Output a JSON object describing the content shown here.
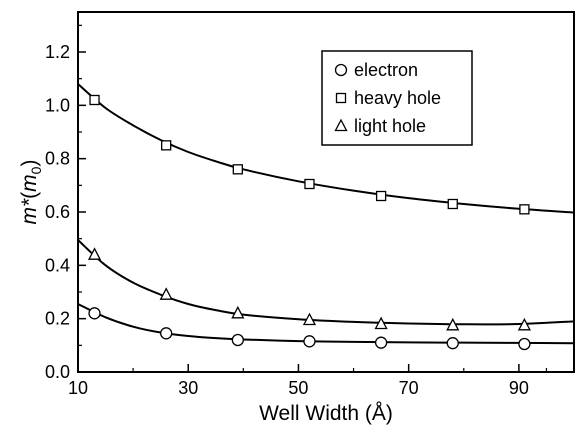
{
  "chart_data": {
    "type": "scatter",
    "title": "",
    "xlabel": "Well Width (Å)",
    "ylabel": {
      "base": "m*",
      "paren_open": "(",
      "unit": "m",
      "unit_sub": "0",
      "paren_close": ")"
    },
    "xlim": [
      10,
      100
    ],
    "ylim": [
      0.0,
      1.35
    ],
    "x_ticks": [
      10,
      30,
      50,
      70,
      90
    ],
    "x_tick_labels": [
      "10",
      "30",
      "50",
      "70",
      "90"
    ],
    "y_ticks": [
      0.0,
      0.2,
      0.4,
      0.6,
      0.8,
      1.0,
      1.2
    ],
    "y_tick_labels": [
      "0.0",
      "0.2",
      "0.4",
      "0.6",
      "0.8",
      "1.0",
      "1.2"
    ],
    "grid": false,
    "legend_position": "top-right",
    "series": [
      {
        "name": "electron",
        "marker": "circle",
        "points": {
          "x": [
            13,
            26,
            39,
            52,
            65,
            78,
            91
          ],
          "y": [
            0.22,
            0.145,
            0.12,
            0.115,
            0.11,
            0.108,
            0.105
          ]
        },
        "fit": {
          "x": [
            10,
            15,
            20,
            25,
            30,
            35,
            40,
            50,
            60,
            70,
            80,
            90,
            100
          ],
          "y": [
            0.255,
            0.205,
            0.17,
            0.148,
            0.135,
            0.127,
            0.122,
            0.116,
            0.113,
            0.111,
            0.11,
            0.109,
            0.108
          ]
        }
      },
      {
        "name": "heavy hole",
        "marker": "square",
        "points": {
          "x": [
            13,
            26,
            39,
            52,
            65,
            78,
            91
          ],
          "y": [
            1.02,
            0.85,
            0.76,
            0.705,
            0.66,
            0.63,
            0.61
          ]
        },
        "fit": {
          "x": [
            10,
            15,
            20,
            25,
            30,
            35,
            40,
            50,
            60,
            70,
            80,
            90,
            100
          ],
          "y": [
            1.08,
            0.99,
            0.925,
            0.87,
            0.825,
            0.79,
            0.76,
            0.715,
            0.68,
            0.652,
            0.63,
            0.612,
            0.598
          ]
        }
      },
      {
        "name": "light hole",
        "marker": "triangle",
        "points": {
          "x": [
            13,
            26,
            39,
            52,
            65,
            78,
            91
          ],
          "y": [
            0.44,
            0.29,
            0.22,
            0.195,
            0.18,
            0.175,
            0.175
          ]
        },
        "fit": {
          "x": [
            10,
            15,
            20,
            25,
            30,
            35,
            40,
            50,
            60,
            70,
            80,
            90,
            100
          ],
          "y": [
            0.495,
            0.4,
            0.335,
            0.29,
            0.255,
            0.232,
            0.215,
            0.198,
            0.188,
            0.182,
            0.179,
            0.18,
            0.19
          ]
        }
      }
    ]
  }
}
